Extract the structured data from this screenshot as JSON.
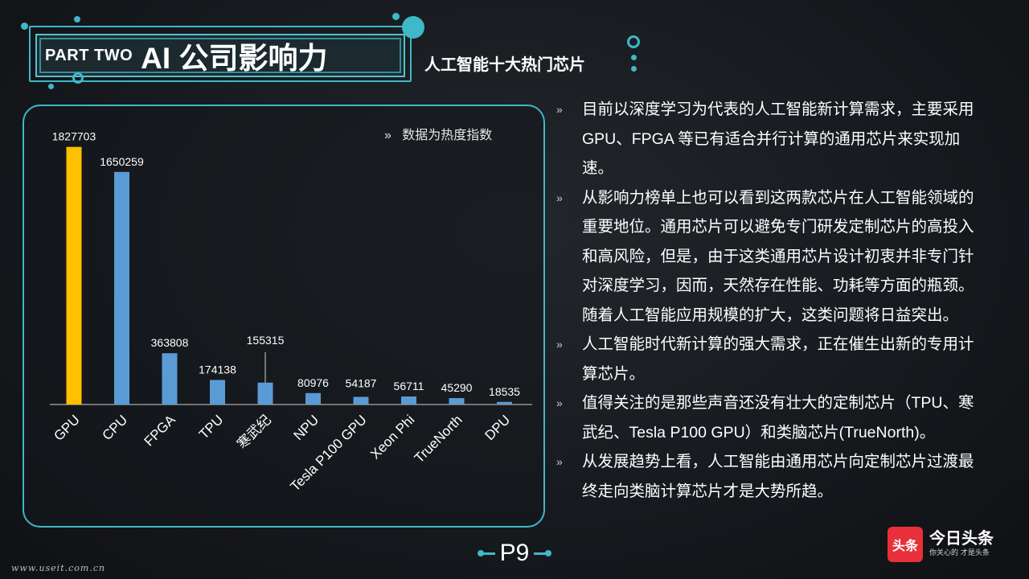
{
  "header": {
    "part": "PART TWO",
    "title": "AI 公司影响力",
    "subtitle": "人工智能十大热门芯片"
  },
  "chart_note": {
    "marker": "»",
    "text": "数据为热度指数"
  },
  "chart_data": {
    "type": "bar",
    "title": "",
    "xlabel": "",
    "ylabel": "",
    "categories": [
      "GPU",
      "CPU",
      "FPGA",
      "TPU",
      "寒武纪",
      "NPU",
      "Tesla P100 GPU",
      "Xeon Phi",
      "TrueNorth",
      "DPU"
    ],
    "values": [
      1827703,
      1650259,
      363808,
      174138,
      155315,
      80976,
      54187,
      56711,
      45290,
      18535
    ],
    "value_labels": [
      "1827703",
      "1650259",
      "363808",
      "174138",
      "155315",
      "80976",
      "54187",
      "56711",
      "45290",
      "18535"
    ],
    "ylim": [
      0,
      1900000
    ],
    "highlight_index": 0,
    "highlight_color": "#ffc000",
    "bar_color": "#5b9bd5",
    "grid": false
  },
  "bullets": {
    "marker": "»",
    "items": [
      {
        "lines": [
          "目前以深度学习为代表的人工智能新计算需求，主要采用",
          "GPU、FPGA 等已有适合并行计算的通用芯片来实现加",
          "速。"
        ]
      },
      {
        "lines": [
          "从影响力榜单上也可以看到这两款芯片在人工智能领域的",
          "重要地位。通用芯片可以避免专门研发定制芯片的高投入",
          "和高风险，但是，由于这类通用芯片设计初衷并非专门针",
          "对深度学习，因而，天然存在性能、功耗等方面的瓶颈。",
          "随着人工智能应用规模的扩大，这类问题将日益突出。"
        ]
      },
      {
        "lines": [
          "人工智能时代新计算的强大需求，正在催生出新的专用计",
          "算芯片。"
        ]
      },
      {
        "lines": [
          "值得关注的是那些声音还没有壮大的定制芯片（TPU、寒",
          "武纪、Tesla P100 GPU）和类脑芯片(TrueNorth)。"
        ]
      },
      {
        "lines": [
          "从发展趋势上看，人工智能由通用芯片向定制芯片过渡最",
          "终走向类脑计算芯片才是大势所趋。"
        ]
      }
    ]
  },
  "footer": {
    "page": "P9",
    "site": "www.useit.com.cn",
    "brand_logo": "头条",
    "brand_name": "今日头条",
    "brand_slogan": "你关心的 才是头条"
  },
  "colors": {
    "accent": "#3fb8c8",
    "background": "#16191d"
  }
}
